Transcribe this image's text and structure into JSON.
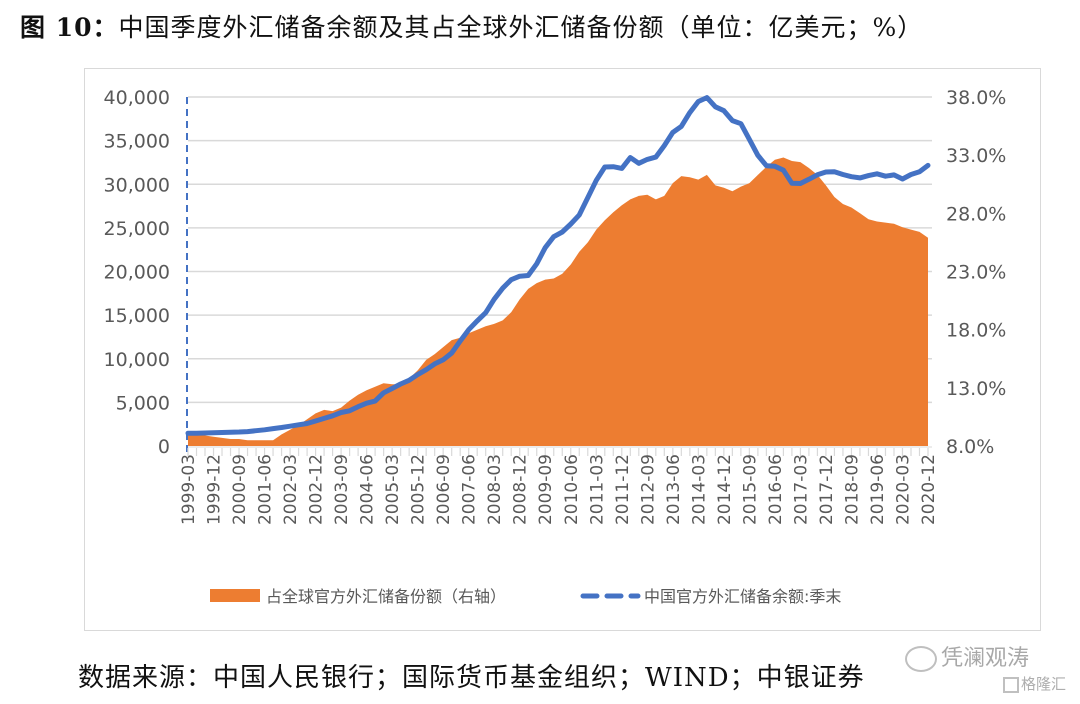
{
  "title": {
    "prefix": "图 10：",
    "text": "中国季度外汇储备余额及其占全球外汇储备份额（单位：亿美元；%）"
  },
  "footer": {
    "source": "数据来源：中国人民银行；国际货币基金组织；WIND；中银证券"
  },
  "watermark": {
    "wechat": "凭澜观涛",
    "site": "格隆汇"
  },
  "colors": {
    "area": "#ED7D31",
    "line": "#4472C4",
    "grid": "#D9D9D9",
    "axis_text": "#595959"
  },
  "chart_data": {
    "type": "area+line",
    "title": "中国季度外汇储备余额及其占全球外汇储备份额（单位：亿美元；%）",
    "xlabel": "",
    "ylabel_left": "亿美元",
    "ylabel_right": "%",
    "ylim_left": [
      0,
      40000
    ],
    "ylim_right": [
      8.0,
      38.0
    ],
    "yticks_left": [
      "0",
      "5,000",
      "10,000",
      "15,000",
      "20,000",
      "25,000",
      "30,000",
      "35,000",
      "40,000"
    ],
    "yticks_right": [
      "8.0%",
      "13.0%",
      "18.0%",
      "23.0%",
      "28.0%",
      "33.0%",
      "38.0%"
    ],
    "grid": true,
    "legend_position": "bottom",
    "x_tick_labels": [
      "1999-03",
      "1999-12",
      "2000-09",
      "2001-06",
      "2002-03",
      "2002-12",
      "2003-09",
      "2004-06",
      "2005-03",
      "2005-12",
      "2006-09",
      "2007-06",
      "2008-03",
      "2008-12",
      "2009-09",
      "2010-06",
      "2011-03",
      "2011-12",
      "2012-09",
      "2013-06",
      "2014-03",
      "2014-12",
      "2015-09",
      "2016-06",
      "2017-03",
      "2017-12",
      "2018-09",
      "2019-06",
      "2020-03",
      "2020-12"
    ],
    "x_start": "1999-03",
    "x_end": "2020-12",
    "frequency": "quarterly",
    "series": [
      {
        "name": "占全球官方外汇储备份额（右轴）",
        "axis": "right",
        "kind": "area",
        "unit": "%",
        "values": [
          9.1,
          9.0,
          8.9,
          8.8,
          8.7,
          8.6,
          8.6,
          8.5,
          8.5,
          8.5,
          8.5,
          9.0,
          9.4,
          9.8,
          10.3,
          10.8,
          11.1,
          11.0,
          11.3,
          11.9,
          12.4,
          12.8,
          13.1,
          13.4,
          13.3,
          13.3,
          13.8,
          14.5,
          15.4,
          15.9,
          16.5,
          17.1,
          17.3,
          17.7,
          18.0,
          18.3,
          18.5,
          18.8,
          19.5,
          20.6,
          21.5,
          22.0,
          22.3,
          22.4,
          22.8,
          23.6,
          24.7,
          25.5,
          26.6,
          27.4,
          28.1,
          28.7,
          29.2,
          29.5,
          29.6,
          29.2,
          29.5,
          30.6,
          31.2,
          31.1,
          30.9,
          31.3,
          30.4,
          30.2,
          29.9,
          30.3,
          30.6,
          31.3,
          32.0,
          32.6,
          32.8,
          32.5,
          32.4,
          31.9,
          31.3,
          30.4,
          29.4,
          28.8,
          28.5,
          28.0,
          27.5,
          27.3,
          27.2,
          27.1,
          26.8,
          26.6,
          26.4,
          25.9
        ]
      },
      {
        "name": "中国官方外汇储备余额:季末",
        "axis": "left",
        "kind": "line",
        "unit": "亿美元",
        "values": [
          1465,
          1467,
          1485,
          1520,
          1547,
          1581,
          1600,
          1656,
          1759,
          1856,
          2000,
          2122,
          2271,
          2426,
          2583,
          2864,
          3160,
          3466,
          3840,
          4033,
          4500,
          4904,
          5145,
          6099,
          6591,
          7110,
          7533,
          8189,
          8750,
          9411,
          9879,
          10663,
          12020,
          13326,
          14336,
          15282,
          16822,
          18088,
          19056,
          19460,
          19537,
          20888,
          22726,
          23992,
          24527,
          25448,
          26483,
          28473,
          30447,
          31975,
          32017,
          31811,
          33049,
          32400,
          32850,
          33116,
          34426,
          35948,
          36627,
          38213,
          39481,
          39932,
          38877,
          38430,
          37300,
          36939,
          35141,
          33304,
          32126,
          32052,
          31611,
          30105,
          30091,
          30567,
          31085,
          31399,
          31428,
          31121,
          30870,
          30727,
          30988,
          31192,
          30924,
          31072,
          30606,
          31123,
          31428,
          32165
        ]
      }
    ]
  },
  "legend": {
    "area_label": "占全球官方外汇储备份额（右轴）",
    "line_label": "中国官方外汇储备余额:季末"
  }
}
